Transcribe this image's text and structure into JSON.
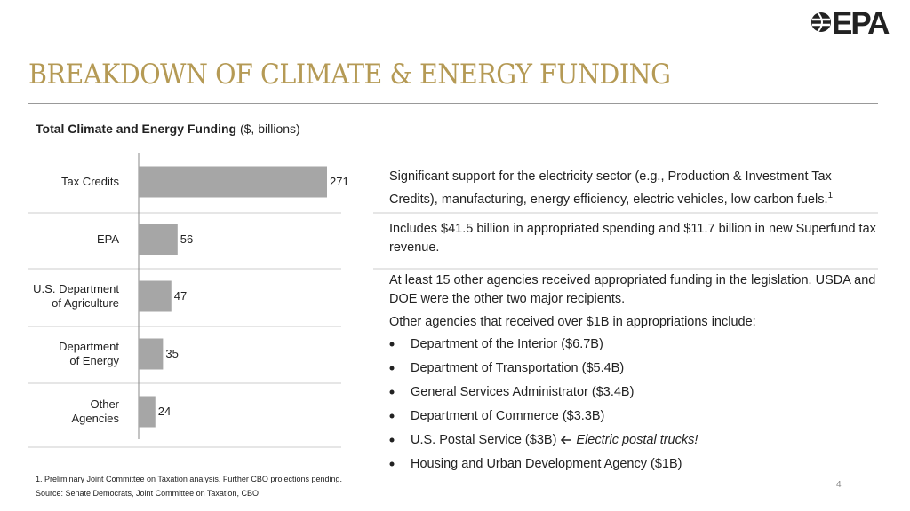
{
  "header": {
    "title": "BREAKDOWN OF CLIMATE & ENERGY FUNDING",
    "logo": "EPA"
  },
  "chart_data": {
    "type": "bar",
    "orientation": "horizontal",
    "title": "Total Climate and Energy Funding",
    "subtitle": "($, billions)",
    "categories": [
      "Tax Credits",
      "EPA",
      "U.S. Department\nof Agriculture",
      "Department\nof Energy",
      "Other\nAgencies"
    ],
    "values": [
      271,
      56,
      47,
      35,
      24
    ],
    "color": "#a6a6a6"
  },
  "notes": [
    {
      "text": "Significant support for the electricity sector (e.g., Production & Investment Tax Credits), manufacturing, energy efficiency, electric vehicles, low carbon fuels.",
      "footnote_ref": "1"
    },
    {
      "text": "Includes $41.5 billion in appropriated spending and $11.7 billion in new Superfund tax revenue."
    },
    {
      "text": "At least 15 other agencies received appropriated funding in the legislation. USDA and DOE were the other two major recipients."
    }
  ],
  "other_agencies": {
    "intro": "Other agencies that received over $1B in appropriations include:",
    "items": [
      {
        "text": "Department of the Interior ($6.7B)"
      },
      {
        "text": "Department of Transportation ($5.4B)"
      },
      {
        "text": "General Services Administrator ($3.4B)"
      },
      {
        "text": "Department of Commerce ($3.3B)"
      },
      {
        "text": "U.S. Postal Service ($3B)",
        "note": "Electric postal trucks!"
      },
      {
        "text": "Housing and Urban Development Agency ($1B)"
      }
    ]
  },
  "footnotes": [
    "1. Preliminary Joint Committee on Taxation analysis. Further CBO projections pending.",
    "Source: Senate Democrats, Joint Committee on Taxation, CBO"
  ],
  "page_number": "4"
}
